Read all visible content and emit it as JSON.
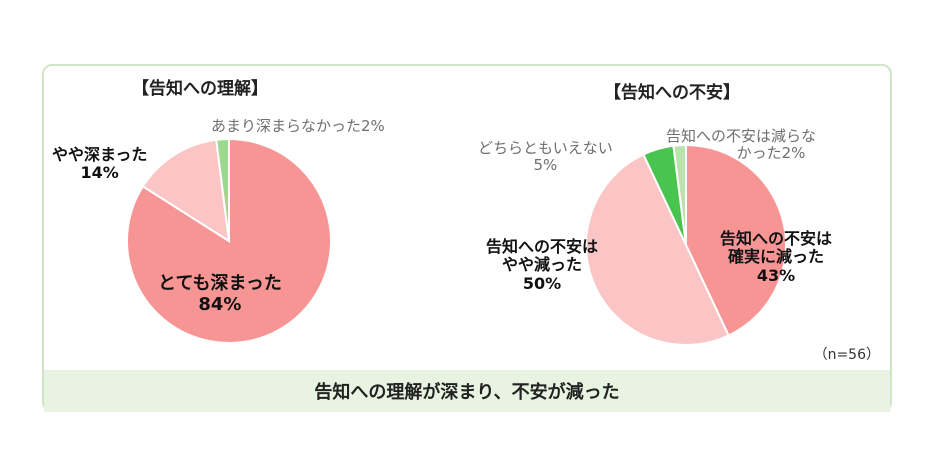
{
  "chart_data": [
    {
      "type": "pie",
      "title": "【告知への理解】",
      "slices": [
        {
          "label_lines": [
            "とても深まった",
            "84%"
          ],
          "value": 84,
          "color": "#f79595"
        },
        {
          "label_lines": [
            "やや深まった",
            "14%"
          ],
          "value": 14,
          "color": "#fbc5c5"
        },
        {
          "label_lines": [
            "あまり深まらなかった2%"
          ],
          "value": 2,
          "color": "#9ed88e"
        }
      ],
      "start": "top",
      "direction": "clockwise"
    },
    {
      "type": "pie",
      "title": "【告知への不安】",
      "slices": [
        {
          "label_lines": [
            "告知への不安は",
            "確実に減った",
            "43%"
          ],
          "value": 43,
          "color": "#f79595"
        },
        {
          "label_lines": [
            "告知への不安は",
            "やや減った",
            "50%"
          ],
          "value": 50,
          "color": "#fbc5c5"
        },
        {
          "label_lines": [
            "どちらともいえない",
            "5%"
          ],
          "value": 5,
          "color": "#49c44f"
        },
        {
          "label_lines": [
            "告知への不安は減らな",
            "かった2%"
          ],
          "value": 2,
          "color": "#b9e2ac"
        }
      ],
      "start": "top",
      "direction": "clockwise",
      "note": "（n=56）"
    }
  ],
  "footer": "告知への理解が深まり、不安が減った"
}
